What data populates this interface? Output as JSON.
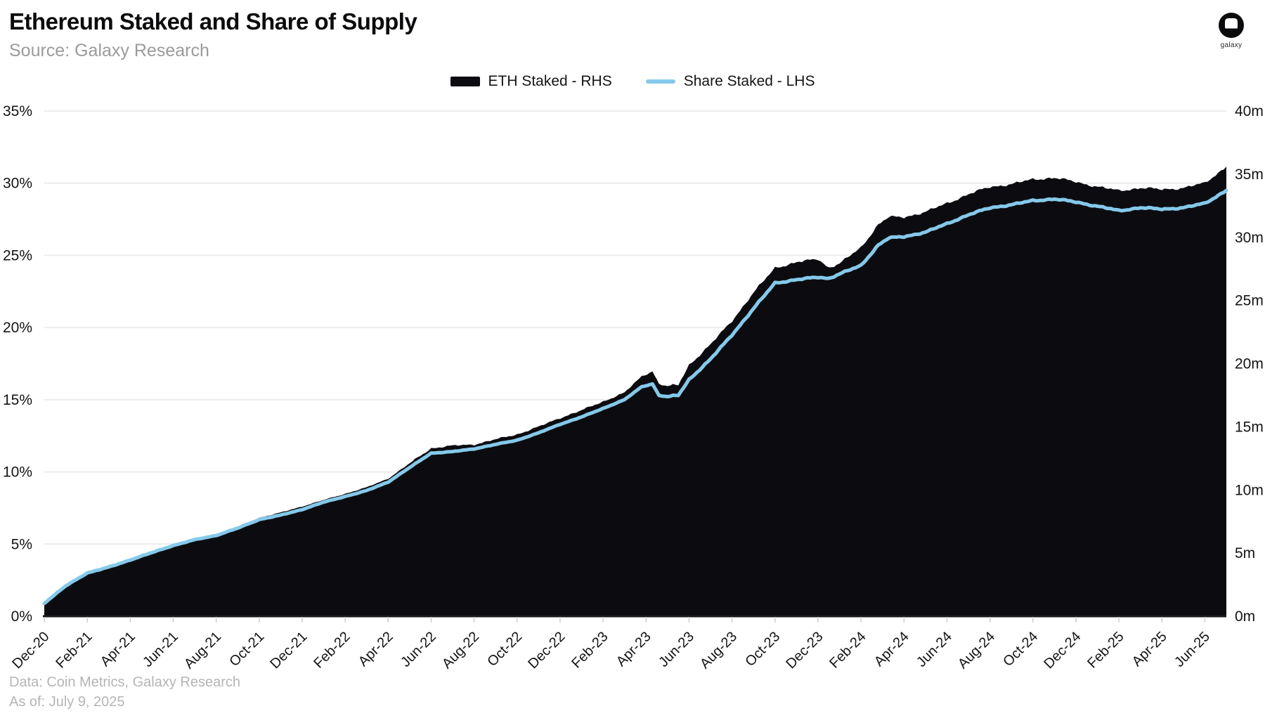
{
  "header": {
    "title": "Ethereum Staked and Share of Supply",
    "subtitle": "Source: Galaxy Research"
  },
  "logo": {
    "name": "galaxy-logo",
    "text": "galaxy"
  },
  "legend": {
    "items": [
      {
        "label": "ETH Staked - RHS",
        "swatch": "black-area",
        "color": "#0c0c10"
      },
      {
        "label": "Share Staked - LHS",
        "swatch": "blue-line",
        "color": "#85c9ea"
      }
    ]
  },
  "footer": {
    "data_source": "Data: Coin Metrics, Galaxy Research",
    "as_of": "As of: July 9, 2025"
  },
  "colors": {
    "area": "#0c0c10",
    "line": "#85c9ea",
    "grid": "#ececec",
    "axis": "#1a1a1c",
    "tick": "#cfcfcf",
    "label": "#141414"
  },
  "chart_data": {
    "type": "area",
    "title": "Ethereum Staked and Share of Supply",
    "grid": "horizontal",
    "legend_position": "top-center",
    "x_unit": "months since Dec-2020",
    "x_range": [
      0,
      55
    ],
    "x_tick_months": [
      0,
      2,
      4,
      6,
      8,
      10,
      12,
      14,
      16,
      18,
      20,
      22,
      24,
      26,
      28,
      30,
      32,
      34,
      36,
      38,
      40,
      42,
      44,
      46,
      48,
      50,
      52,
      54
    ],
    "x_tick_labels": [
      "Dec-20",
      "Feb-21",
      "Apr-21",
      "Jun-21",
      "Aug-21",
      "Oct-21",
      "Dec-21",
      "Feb-22",
      "Apr-22",
      "Jun-22",
      "Aug-22",
      "Oct-22",
      "Dec-22",
      "Feb-23",
      "Apr-23",
      "Jun-23",
      "Aug-23",
      "Oct-23",
      "Dec-23",
      "Feb-24",
      "Apr-24",
      "Jun-24",
      "Aug-24",
      "Oct-24",
      "Dec-24",
      "Feb-25",
      "Apr-25",
      "Jun-25"
    ],
    "y_left": {
      "min": 0,
      "max": 35,
      "step": 5,
      "ticks": [
        "0%",
        "5%",
        "10%",
        "15%",
        "20%",
        "25%",
        "30%",
        "35%"
      ],
      "series": "Share Staked"
    },
    "y_right": {
      "min": 0,
      "max": 40,
      "step": 5,
      "ticks": [
        "0m",
        "5m",
        "10m",
        "15m",
        "20m",
        "25m",
        "30m",
        "35m",
        "40m"
      ],
      "series": "ETH Staked"
    },
    "series": [
      {
        "name": "ETH Staked - RHS",
        "style": "area",
        "axis": "right",
        "unit": "million ETH",
        "color": "#0c0c10",
        "points": [
          [
            0,
            1.0
          ],
          [
            1,
            2.4
          ],
          [
            2,
            3.4
          ],
          [
            3,
            3.9
          ],
          [
            4,
            4.5
          ],
          [
            5,
            5.1
          ],
          [
            6,
            5.7
          ],
          [
            7,
            6.1
          ],
          [
            8,
            6.5
          ],
          [
            9,
            7.1
          ],
          [
            10,
            7.8
          ],
          [
            11,
            8.2
          ],
          [
            12,
            8.7
          ],
          [
            13,
            9.2
          ],
          [
            14,
            9.7
          ],
          [
            15,
            10.2
          ],
          [
            16,
            10.9
          ],
          [
            17,
            12.1
          ],
          [
            18,
            13.3
          ],
          [
            19,
            13.5
          ],
          [
            20,
            13.6
          ],
          [
            21,
            14.0
          ],
          [
            22,
            14.4
          ],
          [
            23,
            15.0
          ],
          [
            24,
            15.7
          ],
          [
            25,
            16.3
          ],
          [
            26,
            17.0
          ],
          [
            27,
            17.7
          ],
          [
            27.8,
            19.0
          ],
          [
            28.3,
            19.4
          ],
          [
            28.6,
            18.4
          ],
          [
            29,
            18.2
          ],
          [
            29.5,
            18.3
          ],
          [
            30,
            19.9
          ],
          [
            31,
            21.5
          ],
          [
            32,
            23.4
          ],
          [
            33,
            25.6
          ],
          [
            34,
            27.6
          ],
          [
            35,
            28.0
          ],
          [
            36,
            28.3
          ],
          [
            36.5,
            27.6
          ],
          [
            37,
            27.9
          ],
          [
            38,
            29.2
          ],
          [
            38.8,
            31.0
          ],
          [
            39.3,
            31.6
          ],
          [
            40,
            31.6
          ],
          [
            41,
            32.0
          ],
          [
            42,
            32.7
          ],
          [
            43,
            33.4
          ],
          [
            44,
            34.0
          ],
          [
            45,
            34.2
          ],
          [
            46,
            34.6
          ],
          [
            47,
            34.7
          ],
          [
            48,
            34.4
          ],
          [
            49,
            34.0
          ],
          [
            50,
            33.7
          ],
          [
            51,
            33.9
          ],
          [
            52,
            33.8
          ],
          [
            53,
            33.9
          ],
          [
            54,
            34.3
          ],
          [
            55,
            35.6
          ]
        ]
      },
      {
        "name": "Share Staked - LHS",
        "style": "line",
        "axis": "left",
        "unit": "percent of supply",
        "color": "#85c9ea",
        "points": [
          [
            0,
            0.9
          ],
          [
            1,
            2.1
          ],
          [
            2,
            3.0
          ],
          [
            3,
            3.4
          ],
          [
            4,
            3.9
          ],
          [
            5,
            4.4
          ],
          [
            6,
            4.9
          ],
          [
            7,
            5.3
          ],
          [
            8,
            5.6
          ],
          [
            9,
            6.1
          ],
          [
            10,
            6.7
          ],
          [
            11,
            7.0
          ],
          [
            12,
            7.4
          ],
          [
            13,
            7.9
          ],
          [
            14,
            8.3
          ],
          [
            15,
            8.7
          ],
          [
            16,
            9.3
          ],
          [
            17,
            10.3
          ],
          [
            18,
            11.3
          ],
          [
            19,
            11.4
          ],
          [
            20,
            11.6
          ],
          [
            21,
            11.9
          ],
          [
            22,
            12.2
          ],
          [
            23,
            12.7
          ],
          [
            24,
            13.3
          ],
          [
            25,
            13.8
          ],
          [
            26,
            14.4
          ],
          [
            27,
            15.0
          ],
          [
            27.8,
            15.9
          ],
          [
            28.3,
            16.1
          ],
          [
            28.6,
            15.3
          ],
          [
            29,
            15.2
          ],
          [
            29.5,
            15.3
          ],
          [
            30,
            16.4
          ],
          [
            31,
            17.8
          ],
          [
            32,
            19.5
          ],
          [
            33,
            21.3
          ],
          [
            34,
            23.1
          ],
          [
            35,
            23.3
          ],
          [
            36,
            23.5
          ],
          [
            36.5,
            23.4
          ],
          [
            37,
            23.7
          ],
          [
            38,
            24.3
          ],
          [
            38.8,
            25.7
          ],
          [
            39.3,
            26.2
          ],
          [
            40,
            26.3
          ],
          [
            41,
            26.6
          ],
          [
            42,
            27.2
          ],
          [
            43,
            27.8
          ],
          [
            44,
            28.3
          ],
          [
            45,
            28.5
          ],
          [
            46,
            28.8
          ],
          [
            47,
            28.9
          ],
          [
            48,
            28.7
          ],
          [
            49,
            28.4
          ],
          [
            50,
            28.1
          ],
          [
            51,
            28.3
          ],
          [
            52,
            28.2
          ],
          [
            53,
            28.3
          ],
          [
            54,
            28.6
          ],
          [
            55,
            29.5
          ]
        ]
      }
    ]
  }
}
